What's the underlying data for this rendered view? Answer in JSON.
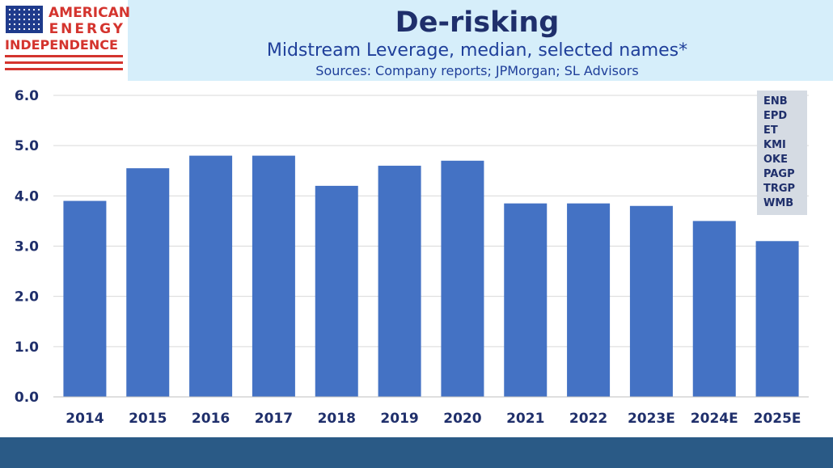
{
  "header": {
    "logo_line1": "AMERICAN",
    "logo_line2": "ENERGY",
    "logo_line3": "INDEPENDENCE",
    "title": "De-risking",
    "subtitle": "Midstream Leverage, median, selected names*",
    "sources": "Sources: Company reports; JPMorgan; SL Advisors"
  },
  "legend": {
    "names": [
      "ENB",
      "EPD",
      "ET",
      "KMI",
      "OKE",
      "PAGP",
      "TRGP",
      "WMB"
    ]
  },
  "colors": {
    "bar": "#4472c4",
    "grid": "#d9d9d9",
    "axis_text": "#1f2f6b"
  },
  "chart_data": {
    "type": "bar",
    "title": "Midstream Leverage, median, selected names*",
    "xlabel": "",
    "ylabel": "",
    "categories": [
      "2014",
      "2015",
      "2016",
      "2017",
      "2018",
      "2019",
      "2020",
      "2021",
      "2022",
      "2023E",
      "2024E",
      "2025E"
    ],
    "values": [
      3.9,
      4.55,
      4.8,
      4.8,
      4.2,
      4.6,
      4.7,
      3.85,
      3.85,
      3.8,
      3.5,
      3.1
    ],
    "ylim": [
      0,
      6
    ],
    "yticks": [
      "0.0",
      "1.0",
      "2.0",
      "3.0",
      "4.0",
      "5.0",
      "6.0"
    ],
    "grid": true
  }
}
